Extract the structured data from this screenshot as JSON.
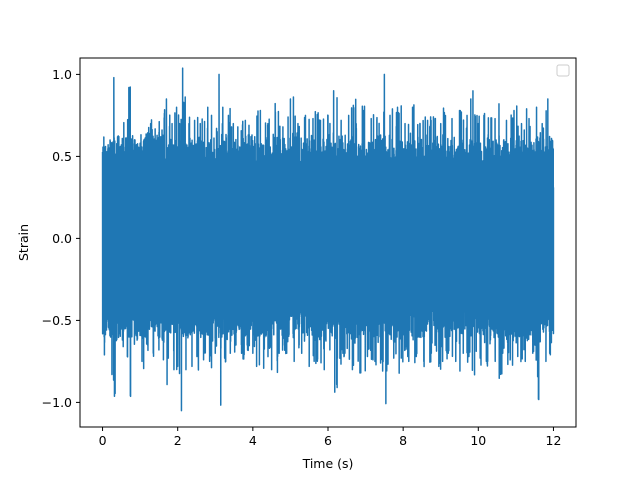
{
  "chart_data": {
    "type": "line",
    "title": "",
    "xlabel": "Time (s)",
    "ylabel": "Strain",
    "xlim": [
      -0.6,
      12.6
    ],
    "ylim": [
      -1.15,
      1.1
    ],
    "x_ticks": [
      0,
      2,
      4,
      6,
      8,
      10,
      12
    ],
    "x_tick_labels": [
      "0",
      "2",
      "4",
      "6",
      "8",
      "10",
      "12"
    ],
    "y_ticks": [
      -1.0,
      -0.5,
      0.0,
      0.5,
      1.0
    ],
    "y_tick_labels": [
      "−1.0",
      "−0.5",
      "0.0",
      "0.5",
      "1.0"
    ],
    "grid": false,
    "legend": {
      "location": "top-right",
      "entries": []
    },
    "colors": {
      "series": "#1f77b4",
      "axes": "#000000",
      "background": "#ffffff"
    },
    "series": [
      {
        "x_range": [
          0,
          12
        ],
        "points": [
          [
            0.0,
            0.35
          ],
          [
            0.05,
            -0.71
          ],
          [
            0.08,
            0.56
          ],
          [
            0.15,
            -0.45
          ],
          [
            0.2,
            0.6
          ],
          [
            0.25,
            -0.83
          ],
          [
            0.3,
            0.98
          ],
          [
            0.35,
            -0.6
          ],
          [
            0.4,
            0.62
          ],
          [
            0.45,
            -0.55
          ],
          [
            0.5,
            0.57
          ],
          [
            0.55,
            -0.66
          ],
          [
            0.6,
            0.5
          ],
          [
            0.66,
            -0.72
          ],
          [
            0.7,
            0.92
          ],
          [
            0.78,
            -0.6
          ],
          [
            0.85,
            0.6
          ],
          [
            0.92,
            -0.62
          ],
          [
            1.0,
            0.58
          ],
          [
            1.05,
            -0.75
          ],
          [
            1.1,
            0.6
          ],
          [
            1.2,
            -0.65
          ],
          [
            1.28,
            0.7
          ],
          [
            1.35,
            -0.7
          ],
          [
            1.4,
            0.62
          ],
          [
            1.5,
            -0.68
          ],
          [
            1.55,
            0.62
          ],
          [
            1.62,
            -0.74
          ],
          [
            1.7,
            0.85
          ],
          [
            1.75,
            -0.73
          ],
          [
            1.85,
            0.7
          ],
          [
            1.9,
            -0.8
          ],
          [
            1.97,
            0.8
          ],
          [
            2.0,
            -0.78
          ],
          [
            2.05,
            0.7
          ],
          [
            2.1,
            -1.05
          ],
          [
            2.15,
            0.82
          ],
          [
            2.22,
            -0.8
          ],
          [
            2.3,
            0.7
          ],
          [
            2.38,
            -0.78
          ],
          [
            2.45,
            0.72
          ],
          [
            2.55,
            -0.78
          ],
          [
            2.6,
            0.7
          ],
          [
            2.7,
            -0.7
          ],
          [
            2.8,
            0.8
          ],
          [
            2.85,
            -0.75
          ],
          [
            2.9,
            0.75
          ],
          [
            3.0,
            -0.7
          ],
          [
            3.05,
            0.65
          ],
          [
            3.1,
            1.0
          ],
          [
            3.15,
            -0.67
          ],
          [
            3.2,
            0.8
          ],
          [
            3.25,
            -0.73
          ],
          [
            3.35,
            0.75
          ],
          [
            3.4,
            -0.7
          ],
          [
            3.48,
            0.7
          ],
          [
            3.55,
            -0.65
          ],
          [
            3.6,
            0.68
          ],
          [
            3.7,
            -0.7
          ],
          [
            3.8,
            0.72
          ],
          [
            3.85,
            -0.65
          ],
          [
            3.95,
            0.62
          ],
          [
            4.0,
            -0.7
          ],
          [
            4.05,
            0.62
          ],
          [
            4.1,
            -0.78
          ],
          [
            4.2,
            0.78
          ],
          [
            4.3,
            -0.67
          ],
          [
            4.4,
            0.7
          ],
          [
            4.5,
            -0.8
          ],
          [
            4.6,
            0.77
          ],
          [
            4.7,
            -0.7
          ],
          [
            4.8,
            0.68
          ],
          [
            4.9,
            -0.7
          ],
          [
            5.0,
            0.85
          ],
          [
            5.1,
            -0.75
          ],
          [
            5.2,
            0.7
          ],
          [
            5.3,
            -0.7
          ],
          [
            5.4,
            0.75
          ],
          [
            5.5,
            -0.78
          ],
          [
            5.6,
            0.73
          ],
          [
            5.7,
            -0.72
          ],
          [
            5.8,
            0.72
          ],
          [
            5.9,
            -0.8
          ],
          [
            6.0,
            0.75
          ],
          [
            6.05,
            -0.68
          ],
          [
            6.15,
            0.9
          ],
          [
            6.25,
            -0.73
          ],
          [
            6.35,
            0.72
          ],
          [
            6.45,
            -0.7
          ],
          [
            6.55,
            0.75
          ],
          [
            6.65,
            -0.8
          ],
          [
            6.75,
            0.7
          ],
          [
            6.85,
            -0.82
          ],
          [
            6.95,
            0.78
          ],
          [
            7.05,
            -0.72
          ],
          [
            7.15,
            0.73
          ],
          [
            7.25,
            -0.75
          ],
          [
            7.3,
            0.72
          ],
          [
            7.4,
            -0.76
          ],
          [
            7.5,
            1.0
          ],
          [
            7.55,
            -0.8
          ],
          [
            7.65,
            0.75
          ],
          [
            7.75,
            -0.73
          ],
          [
            7.85,
            0.8
          ],
          [
            7.95,
            -0.73
          ],
          [
            8.05,
            0.7
          ],
          [
            8.15,
            -0.75
          ],
          [
            8.25,
            0.8
          ],
          [
            8.35,
            -0.72
          ],
          [
            8.45,
            0.7
          ],
          [
            8.55,
            -0.75
          ],
          [
            8.65,
            0.72
          ],
          [
            8.75,
            -0.7
          ],
          [
            8.85,
            0.73
          ],
          [
            8.95,
            -0.78
          ],
          [
            9.0,
            0.7
          ],
          [
            9.05,
            -0.75
          ],
          [
            9.1,
            0.72
          ],
          [
            9.2,
            -0.7
          ],
          [
            9.3,
            0.73
          ],
          [
            9.4,
            -0.75
          ],
          [
            9.5,
            0.78
          ],
          [
            9.6,
            -0.7
          ],
          [
            9.7,
            0.75
          ],
          [
            9.75,
            -0.72
          ],
          [
            9.8,
            0.85
          ],
          [
            9.9,
            -0.72
          ],
          [
            10.0,
            0.7
          ],
          [
            10.05,
            -0.73
          ],
          [
            10.15,
            0.75
          ],
          [
            10.25,
            -0.75
          ],
          [
            10.35,
            0.7
          ],
          [
            10.45,
            -0.75
          ],
          [
            10.55,
            0.82
          ],
          [
            10.65,
            -0.7
          ],
          [
            10.75,
            0.72
          ],
          [
            10.85,
            -0.73
          ],
          [
            10.95,
            0.78
          ],
          [
            11.05,
            -0.72
          ],
          [
            11.15,
            0.7
          ],
          [
            11.25,
            -0.75
          ],
          [
            11.35,
            0.73
          ],
          [
            11.45,
            -0.7
          ],
          [
            11.55,
            0.8
          ],
          [
            11.6,
            -0.98
          ],
          [
            11.7,
            0.7
          ],
          [
            11.8,
            -0.75
          ],
          [
            11.85,
            0.85
          ],
          [
            11.9,
            -0.7
          ],
          [
            11.95,
            0.55
          ],
          [
            12.0,
            -0.58
          ],
          [
            12.0,
            0.2
          ]
        ]
      }
    ]
  }
}
